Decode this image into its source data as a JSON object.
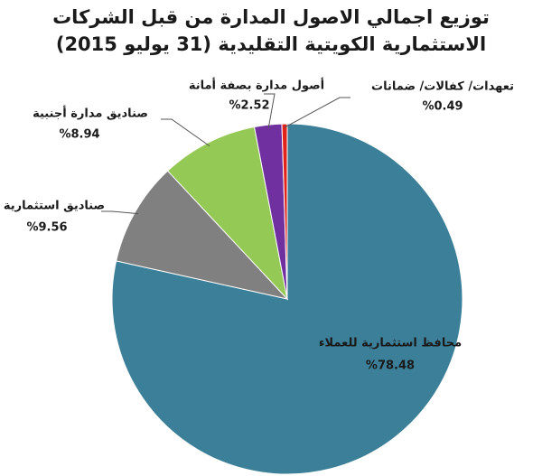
{
  "chart_data": {
    "type": "pie",
    "title": "توزيع اجمالي الاصول المدارة من قبل الشركات الاستثمارية الكويتية التقليدية (31 يوليو 2015)",
    "categories": [
      "محافظ استثمارية للعملاء",
      "صناديق استثمارية",
      "صناديق مدارة أجنبية",
      "أصول مدارة بصفة أمانة",
      "تعهدات/ كفالات/ ضمانات"
    ],
    "values": [
      78.48,
      9.56,
      8.94,
      2.52,
      0.49
    ],
    "value_labels": [
      "%78.48",
      "%9.56",
      "%8.94",
      "%2.52",
      "%0.49"
    ],
    "colors": [
      "#3b7f98",
      "#808080",
      "#93c954",
      "#7030a0",
      "#e2231a"
    ]
  }
}
